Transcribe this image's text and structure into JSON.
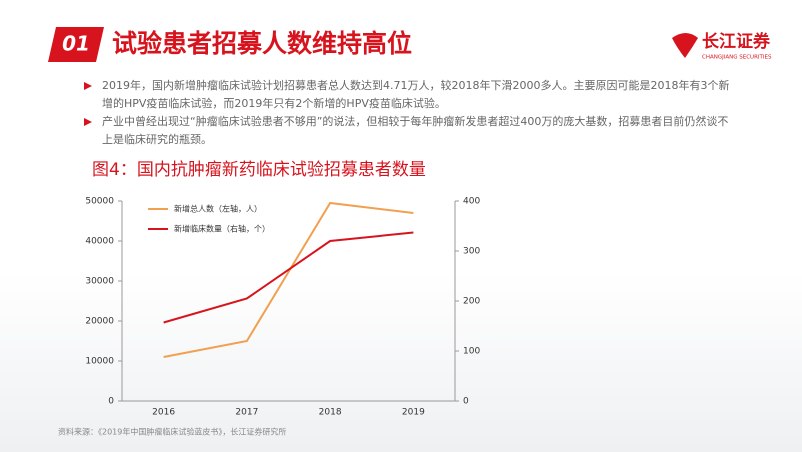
{
  "header": {
    "number": "01",
    "title": "试验患者招募人数维持高位",
    "logo": "长江证券",
    "logo_sub": "CHANGJIANG SECURITIES"
  },
  "bullets": [
    "2019年，国内新增肿瘤临床试验计划招募患者总人数达到4.71万人，较2018年下滑2000多人。主要原因可能是2018年有3个新增的HPV疫苗临床试验，而2019年只有2个新增的HPV疫苗临床试验。",
    "产业中曾经出现过“肿瘤临床试验患者不够用”的说法，但相较于每年肿瘤新发患者超过400万的庞大基数，招募患者目前仍然谈不上是临床研究的瓶颈。"
  ],
  "chart_data": {
    "type": "line",
    "title": "图4：国内抗肿瘤新药临床试验招募患者数量",
    "categories": [
      "2016",
      "2017",
      "2018",
      "2019"
    ],
    "series": [
      {
        "name": "新增总人数（左轴，人）",
        "color": "#f0a050",
        "values": [
          11000,
          15000,
          49500,
          47000
        ]
      },
      {
        "name": "新增临床数量（右轴，个）",
        "color": "#d7141e",
        "values": [
          157,
          205,
          320,
          337
        ],
        "axis": "y2"
      }
    ],
    "ylim": [
      0,
      50000
    ],
    "yticks": [
      0,
      10000,
      20000,
      30000,
      40000,
      50000
    ],
    "y2lim": [
      0,
      400
    ],
    "y2ticks": [
      0,
      100,
      200,
      300,
      400
    ]
  },
  "source": "资料来源：《2019年中国肿瘤临床试验蓝皮书》，长江证券研究所"
}
